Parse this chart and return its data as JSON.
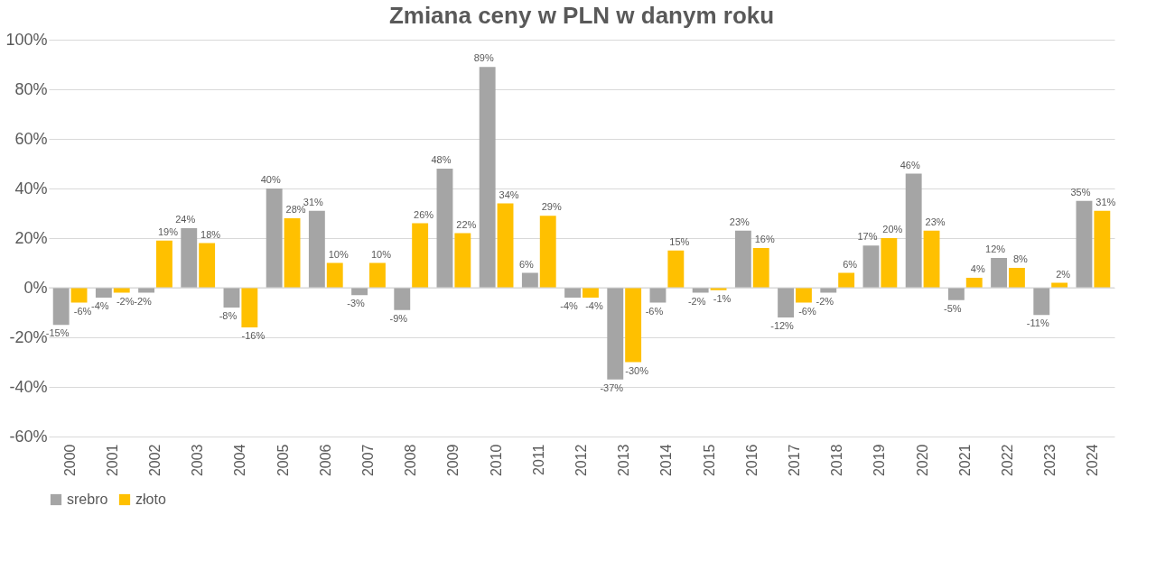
{
  "chart_data": {
    "type": "bar",
    "title": "Zmiana ceny w PLN w danym roku",
    "categories": [
      "2000",
      "2001",
      "2002",
      "2003",
      "2004",
      "2005",
      "2006",
      "2007",
      "2008",
      "2009",
      "2010",
      "2011",
      "2012",
      "2013",
      "2014",
      "2015",
      "2016",
      "2017",
      "2018",
      "2019",
      "2020",
      "2021",
      "2022",
      "2023",
      "2024"
    ],
    "series": [
      {
        "name": "srebro",
        "color": "#a5a5a5",
        "values": [
          -15,
          -4,
          -2,
          24,
          -8,
          40,
          31,
          -3,
          -9,
          48,
          89,
          6,
          -4,
          -37,
          -6,
          -2,
          23,
          -12,
          -2,
          17,
          46,
          -5,
          12,
          -11,
          35
        ],
        "value_labels": [
          "-15%",
          "-4%",
          "-2%",
          "24%",
          "-8%",
          "40%",
          "31%",
          "-3%",
          "-9%",
          "48%",
          "89%",
          "6%",
          "-4%",
          "-37%",
          "-6%",
          "-2%",
          "23%",
          "-12%",
          "-2%",
          "17%",
          "46%",
          "-5%",
          "12%",
          "-11%",
          "35%"
        ]
      },
      {
        "name": "złoto",
        "color": "#ffc000",
        "values": [
          -6,
          -2,
          19,
          18,
          -16,
          28,
          10,
          10,
          26,
          22,
          34,
          29,
          -4,
          -30,
          15,
          -1,
          16,
          -6,
          6,
          20,
          23,
          4,
          8,
          2,
          31
        ],
        "value_labels": [
          "-6%",
          "-2%",
          "19%",
          "18%",
          "-16%",
          "28%",
          "10%",
          "10%",
          "26%",
          "22%",
          "34%",
          "29%",
          "-4%",
          "-30%",
          "15%",
          "-1%",
          "16%",
          "-6%",
          "6%",
          "20%",
          "23%",
          "4%",
          "8%",
          "2%",
          "31%"
        ]
      }
    ],
    "ylim": [
      -60,
      100
    ],
    "yticks": [
      {
        "value": -60,
        "label": "-60%"
      },
      {
        "value": -40,
        "label": "-40%"
      },
      {
        "value": -20,
        "label": "-20%"
      },
      {
        "value": 0,
        "label": "0%"
      },
      {
        "value": 20,
        "label": "20%"
      },
      {
        "value": 40,
        "label": "40%"
      },
      {
        "value": 60,
        "label": "60%"
      },
      {
        "value": 80,
        "label": "80%"
      },
      {
        "value": 100,
        "label": "100%"
      }
    ],
    "grid": "y",
    "legend": "bottom"
  }
}
